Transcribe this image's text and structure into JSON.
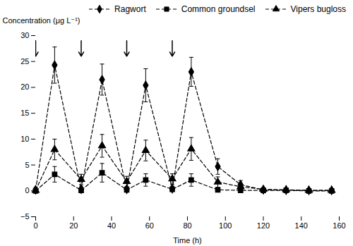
{
  "chart_data": {
    "type": "line",
    "xlabel": "Time (h)",
    "ylabel": "Concentration (μg L⁻¹)",
    "xlim": [
      0,
      160
    ],
    "xticks": [
      0,
      20,
      40,
      60,
      80,
      100,
      120,
      140,
      160
    ],
    "ylim": [
      -5,
      30
    ],
    "yticks": [
      -5,
      0,
      5,
      10,
      15,
      20,
      25,
      30
    ],
    "grid": false,
    "legend": "upper right",
    "x": [
      0,
      10,
      24,
      35,
      48,
      58,
      72,
      82,
      96,
      108,
      120,
      132,
      144,
      156
    ],
    "series": [
      {
        "name": "Ragwort",
        "color": "#000000",
        "marker": "diamond",
        "line_style": "dashed",
        "values": [
          0.2,
          24.3,
          0.3,
          21.5,
          0.3,
          20.4,
          0.4,
          23.0,
          4.7,
          1.2,
          0.2,
          0.15,
          0.1,
          0.1
        ],
        "errors": [
          0.5,
          3.5,
          0.5,
          3.0,
          0.5,
          3.2,
          0.5,
          2.8,
          1.5,
          0.8,
          0.3,
          0.2,
          0.1,
          0.1
        ]
      },
      {
        "name": "Common groundsel",
        "color": "#000000",
        "marker": "square",
        "line_style": "dashed",
        "values": [
          0.0,
          3.2,
          0.1,
          3.5,
          0.2,
          2.1,
          0.3,
          2.1,
          0.2,
          0.1,
          0.1,
          0.1,
          0.0,
          0.0
        ],
        "errors": [
          0.1,
          1.5,
          0.2,
          1.8,
          0.3,
          1.2,
          0.3,
          1.2,
          0.2,
          0.15,
          0.1,
          0.1,
          0.05,
          0.05
        ]
      },
      {
        "name": "Vipers bugloss",
        "color": "#000000",
        "marker": "triangle",
        "line_style": "dashed",
        "values": [
          0.1,
          8.0,
          2.2,
          8.7,
          1.8,
          7.8,
          2.3,
          8.1,
          1.7,
          0.8,
          0.3,
          0.2,
          0.1,
          0.1
        ],
        "errors": [
          0.2,
          2.0,
          1.0,
          2.2,
          1.0,
          2.0,
          1.0,
          2.2,
          1.0,
          0.6,
          0.3,
          0.2,
          0.1,
          0.1
        ]
      }
    ],
    "annotations": [
      {
        "type": "arrow",
        "x": 0,
        "y_start": 29.0,
        "y_end": 26.0
      },
      {
        "type": "arrow",
        "x": 24,
        "y_start": 29.0,
        "y_end": 26.0
      },
      {
        "type": "arrow",
        "x": 48,
        "y_start": 29.0,
        "y_end": 26.0
      },
      {
        "type": "arrow",
        "x": 72,
        "y_start": 29.0,
        "y_end": 26.0
      }
    ]
  }
}
